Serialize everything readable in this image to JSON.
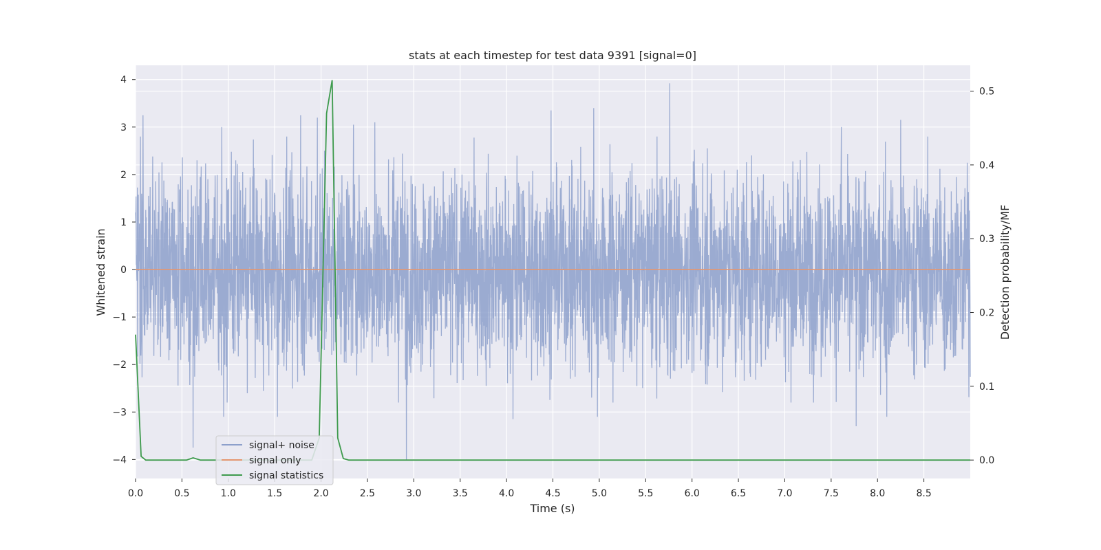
{
  "chart_data": {
    "type": "line",
    "title": "stats at each timestep for test data 9391 [signal=0]",
    "xlabel": "Time (s)",
    "ylabel": "Whitened strain",
    "y2label": "Detection probability/MF",
    "xlim": [
      0,
      9.0
    ],
    "ylim": [
      -4.4,
      4.3
    ],
    "y2lim": [
      -0.025,
      0.535
    ],
    "xticks": [
      "0.0",
      "0.5",
      "1.0",
      "1.5",
      "2.0",
      "2.5",
      "3.0",
      "3.5",
      "4.0",
      "4.5",
      "5.0",
      "5.5",
      "6.0",
      "6.5",
      "7.0",
      "7.5",
      "8.0",
      "8.5"
    ],
    "yticks": [
      "4",
      "3",
      "2",
      "1",
      "0",
      "−1",
      "−2",
      "−3",
      "−4"
    ],
    "y2ticks": [
      "0.5",
      "0.4",
      "0.3",
      "0.2",
      "0.1",
      "0.0"
    ],
    "grid": true,
    "legend_position": "bottom-left",
    "legend": [
      "signal+ noise",
      "signal only",
      "signal statistics"
    ],
    "colors": {
      "noise": "#8da0cb",
      "signal_only": "#e5966f",
      "statistics": "#3d9a4c",
      "plot_background": "#eaeaf2",
      "grid": "#ffffff"
    },
    "series": [
      {
        "name": "signal+ noise",
        "axis": "left",
        "style": "dense noise, ~±1.1 typical amplitude",
        "peaks": [
          {
            "x": 0.08,
            "y": 3.25
          },
          {
            "x": 0.62,
            "y": 3.1
          },
          {
            "x": 0.93,
            "y": 3.0
          },
          {
            "x": 1.78,
            "y": 3.25
          },
          {
            "x": 1.96,
            "y": 3.2
          },
          {
            "x": 2.35,
            "y": 3.05
          },
          {
            "x": 2.58,
            "y": 3.1
          },
          {
            "x": 4.48,
            "y": 3.35
          },
          {
            "x": 4.94,
            "y": 3.4
          },
          {
            "x": 5.76,
            "y": 3.92
          },
          {
            "x": 7.61,
            "y": 3.0
          },
          {
            "x": 8.25,
            "y": 3.15
          }
        ],
        "troughs": [
          {
            "x": 0.62,
            "y": -3.75
          },
          {
            "x": 0.95,
            "y": -3.1
          },
          {
            "x": 1.53,
            "y": -3.1
          },
          {
            "x": 2.92,
            "y": -4.0
          },
          {
            "x": 4.07,
            "y": -3.15
          },
          {
            "x": 4.98,
            "y": -3.1
          },
          {
            "x": 7.77,
            "y": -3.3
          },
          {
            "x": 8.1,
            "y": -3.1
          }
        ]
      },
      {
        "name": "signal only",
        "axis": "left",
        "x": [
          0.0,
          9.0
        ],
        "values": [
          0.0,
          0.0
        ]
      },
      {
        "name": "signal statistics",
        "axis": "right",
        "x": [
          0.0,
          0.06,
          0.11,
          0.2,
          0.55,
          0.62,
          0.7,
          1.9,
          1.98,
          2.06,
          2.12,
          2.18,
          2.24,
          2.3,
          3.0,
          5.0,
          7.0,
          9.0
        ],
        "values": [
          0.17,
          0.005,
          0.0,
          0.0,
          0.0,
          0.003,
          0.0,
          0.0,
          0.03,
          0.47,
          0.515,
          0.03,
          0.002,
          0.0,
          0.0,
          0.0,
          0.0,
          0.0
        ]
      }
    ]
  }
}
